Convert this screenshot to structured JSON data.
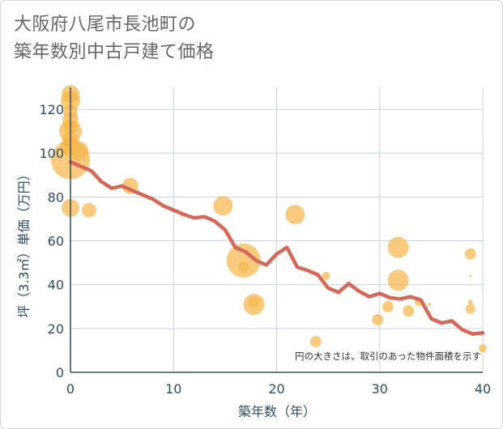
{
  "title": {
    "line1": "大阪府八尾市長池町の",
    "line2": "築年数別中古戸建て価格"
  },
  "chart_data": {
    "type": "scatter",
    "title": "大阪府八尾市長池町の築年数別中古戸建て価格",
    "xlabel": "築年数（年）",
    "ylabel": "坪（3.3㎡）単価（万円）",
    "xlim": [
      0,
      40
    ],
    "ylim": [
      0,
      130
    ],
    "x_ticks": [
      0,
      10,
      20,
      30,
      40
    ],
    "y_ticks": [
      0,
      20,
      40,
      60,
      80,
      100,
      120
    ],
    "grid": true,
    "note": "円の大きさは、取引のあった物件面積を示す",
    "colors": {
      "bubble": "#f5b74e",
      "line": "#d4695a",
      "grid": "#c9d3dc",
      "axis": "#2f4f5f"
    },
    "points": [
      {
        "x": 0,
        "y": 127,
        "s": 11
      },
      {
        "x": 0,
        "y": 124,
        "s": 12
      },
      {
        "x": 0,
        "y": 119,
        "s": 9
      },
      {
        "x": 0,
        "y": 115,
        "s": 10
      },
      {
        "x": 0,
        "y": 112,
        "s": 9
      },
      {
        "x": 0,
        "y": 110,
        "s": 14
      },
      {
        "x": 0,
        "y": 106,
        "s": 10
      },
      {
        "x": 0,
        "y": 103,
        "s": 12
      },
      {
        "x": 0,
        "y": 97,
        "s": 24
      },
      {
        "x": 0,
        "y": 75,
        "s": 11
      },
      {
        "x": 0.8,
        "y": 101,
        "s": 12
      },
      {
        "x": 1.8,
        "y": 74,
        "s": 9
      },
      {
        "x": 5.8,
        "y": 85,
        "s": 10
      },
      {
        "x": 14.8,
        "y": 76,
        "s": 12
      },
      {
        "x": 16.8,
        "y": 51,
        "s": 21
      },
      {
        "x": 16.8,
        "y": 48,
        "s": 7
      },
      {
        "x": 17.8,
        "y": 31,
        "s": 13
      },
      {
        "x": 17.8,
        "y": 32,
        "s": 7
      },
      {
        "x": 21.8,
        "y": 72,
        "s": 12
      },
      {
        "x": 23.8,
        "y": 14,
        "s": 7
      },
      {
        "x": 24.8,
        "y": 44,
        "s": 5
      },
      {
        "x": 29.8,
        "y": 24,
        "s": 7
      },
      {
        "x": 30.8,
        "y": 30,
        "s": 7
      },
      {
        "x": 31.8,
        "y": 57,
        "s": 13
      },
      {
        "x": 31.8,
        "y": 42,
        "s": 13
      },
      {
        "x": 32.8,
        "y": 28,
        "s": 7
      },
      {
        "x": 33.8,
        "y": 32,
        "s": 5
      },
      {
        "x": 34.8,
        "y": 31,
        "s": 2
      },
      {
        "x": 38.8,
        "y": 54,
        "s": 7
      },
      {
        "x": 38.8,
        "y": 44,
        "s": 1.5
      },
      {
        "x": 38.8,
        "y": 40,
        "s": 1
      },
      {
        "x": 38.8,
        "y": 32,
        "s": 3
      },
      {
        "x": 38.8,
        "y": 29,
        "s": 6
      },
      {
        "x": 40,
        "y": 11,
        "s": 5
      }
    ],
    "series": [
      {
        "name": "平均",
        "x": [
          0,
          1,
          2,
          3,
          4,
          5,
          6,
          7,
          8,
          9,
          10,
          11,
          12,
          13,
          14,
          15,
          16,
          17,
          18,
          19,
          20,
          21,
          22,
          23,
          24,
          25,
          26,
          27,
          28,
          29,
          30,
          31,
          32,
          33,
          34,
          35,
          36,
          37,
          38,
          39,
          40
        ],
        "values": [
          96,
          94,
          92,
          87,
          84,
          85,
          83,
          81,
          79,
          76,
          74,
          72,
          70.5,
          71,
          69,
          65,
          57,
          55,
          51,
          49,
          54,
          57,
          48,
          46.5,
          44.5,
          38.5,
          36.5,
          40.5,
          37,
          34.5,
          36,
          34,
          33.5,
          34.5,
          33,
          24.5,
          22.5,
          23.5,
          19.5,
          17.5,
          18
        ]
      }
    ]
  }
}
